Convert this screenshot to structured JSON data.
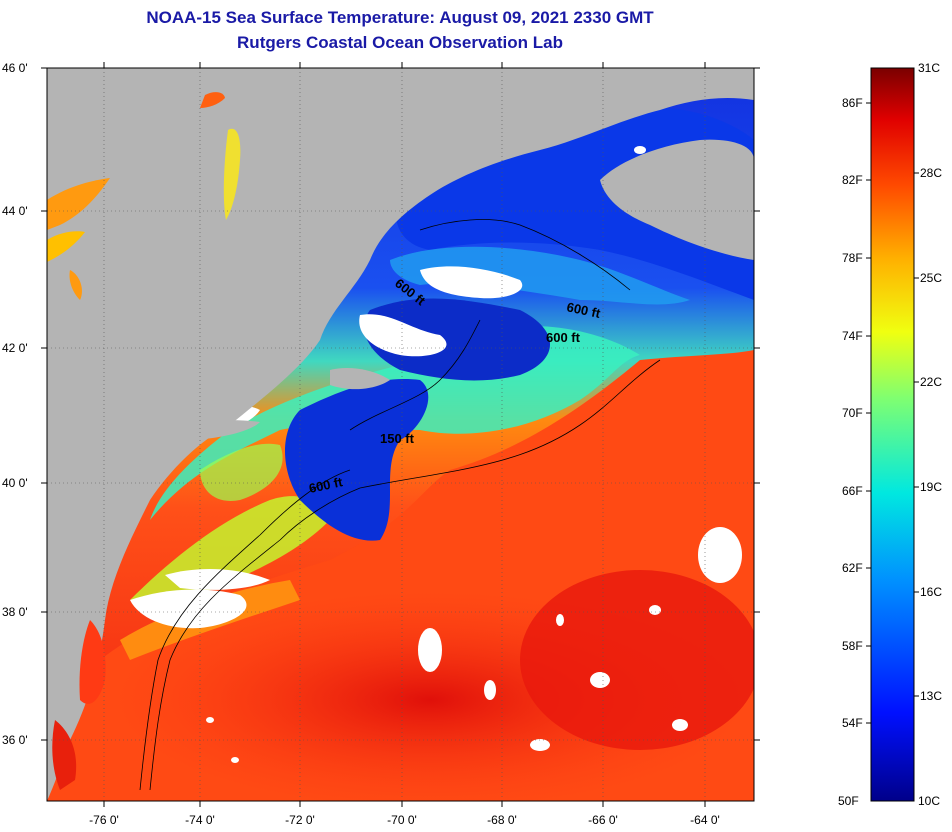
{
  "header": {
    "title": "NOAA-15 Sea Surface Temperature:  August 09, 2021 2330 GMT",
    "subtitle": "Rutgers Coastal Ocean Observation Lab"
  },
  "map": {
    "lat_labels": [
      "46 0'",
      "44 0'",
      "42 0'",
      "40 0'",
      "38 0'",
      "36 0'"
    ],
    "lon_labels": [
      "-76 0'",
      "-74 0'",
      "-72 0'",
      "-70 0'",
      "-68 0'",
      "-66 0'",
      "-64 0'"
    ],
    "isobath_labels": [
      "600 ft",
      "600 ft",
      "600 ft",
      "150 ft",
      "600 ft"
    ],
    "colors": {
      "land": "#b4b4b4",
      "cloud": "#ffffff",
      "warm": "#ff3a14",
      "cold": "#0a2cd6"
    }
  },
  "colorbar": {
    "fahrenheit_labels": [
      "86F",
      "82F",
      "78F",
      "74F",
      "70F",
      "66F",
      "62F",
      "58F",
      "54F",
      "50F"
    ],
    "celsius_labels": [
      "31C",
      "28C",
      "25C",
      "22C",
      "19C",
      "16C",
      "13C",
      "10C"
    ],
    "range_f": [
      50,
      88
    ],
    "range_c": [
      10,
      31
    ]
  }
}
